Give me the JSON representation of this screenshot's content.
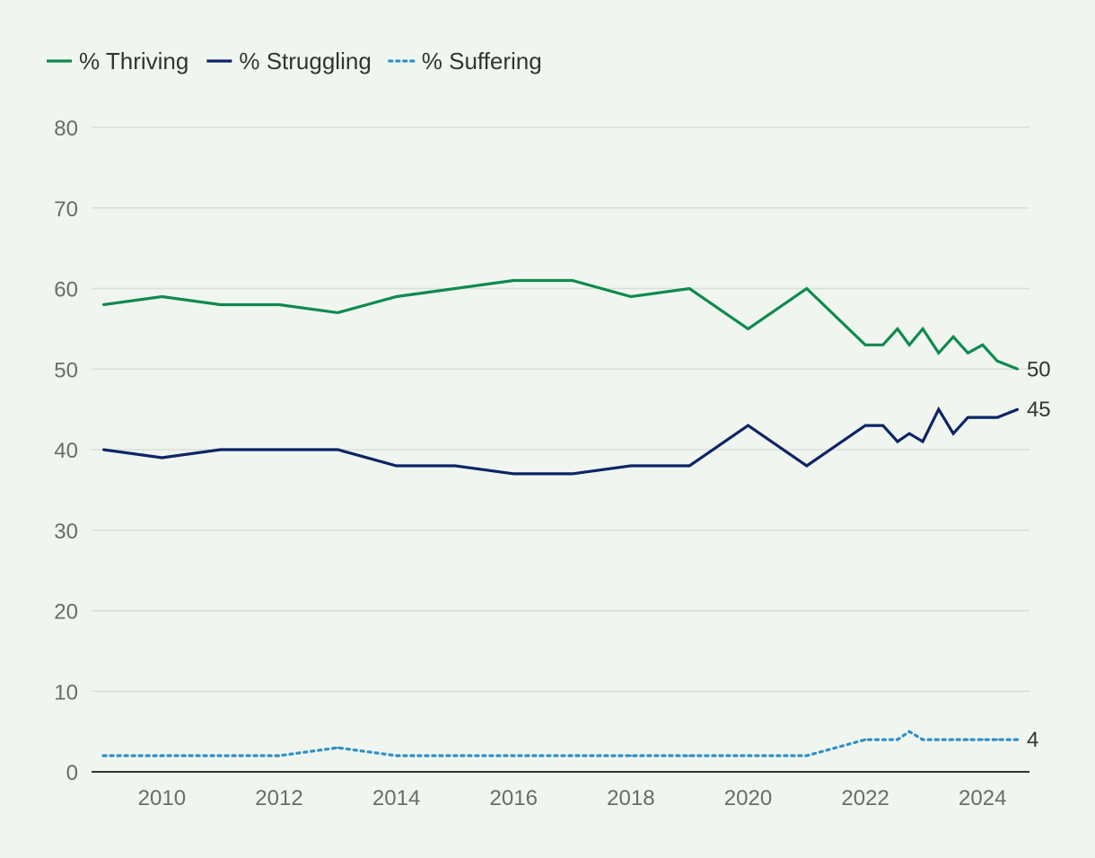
{
  "chart_data": {
    "type": "line",
    "title": "",
    "xlabel": "",
    "ylabel": "",
    "ylim": [
      0,
      80
    ],
    "yticks": [
      0,
      10,
      20,
      30,
      40,
      50,
      60,
      70,
      80
    ],
    "xlim": [
      2008.8,
      2024.8
    ],
    "xticks": [
      2010,
      2012,
      2014,
      2016,
      2018,
      2020,
      2022,
      2024
    ],
    "grid": true,
    "legend_position": "top-left",
    "series": [
      {
        "name": "% Thriving",
        "color": "#0e8a4e",
        "style": "solid",
        "x": [
          2009,
          2010,
          2011,
          2012,
          2013,
          2014,
          2015,
          2016,
          2017,
          2018,
          2019,
          2020,
          2021,
          2022,
          2022.3,
          2022.55,
          2022.75,
          2022.98,
          2023.25,
          2023.5,
          2023.75,
          2024.0,
          2024.25,
          2024.6
        ],
        "y": [
          58,
          59,
          58,
          58,
          57,
          59,
          60,
          61,
          61,
          59,
          60,
          55,
          60,
          53,
          53,
          55,
          53,
          55,
          52,
          54,
          52,
          53,
          51,
          50
        ],
        "end_label": "50"
      },
      {
        "name": "% Struggling",
        "color": "#0d2466",
        "style": "solid",
        "x": [
          2009,
          2010,
          2011,
          2012,
          2013,
          2014,
          2015,
          2016,
          2017,
          2018,
          2019,
          2020,
          2021,
          2022,
          2022.3,
          2022.55,
          2022.75,
          2022.98,
          2023.25,
          2023.5,
          2023.75,
          2024.0,
          2024.25,
          2024.6
        ],
        "y": [
          40,
          39,
          40,
          40,
          40,
          38,
          38,
          37,
          37,
          38,
          38,
          43,
          38,
          43,
          43,
          41,
          42,
          41,
          45,
          42,
          44,
          44,
          44,
          45
        ],
        "end_label": "45"
      },
      {
        "name": "% Suffering",
        "color": "#2f8fc9",
        "style": "dotted",
        "x": [
          2009,
          2010,
          2011,
          2012,
          2013,
          2014,
          2015,
          2016,
          2017,
          2018,
          2019,
          2020,
          2021,
          2022,
          2022.3,
          2022.55,
          2022.75,
          2022.98,
          2023.25,
          2023.5,
          2023.75,
          2024.0,
          2024.25,
          2024.6
        ],
        "y": [
          2,
          2,
          2,
          2,
          3,
          2,
          2,
          2,
          2,
          2,
          2,
          2,
          2,
          4,
          4,
          4,
          5,
          4,
          4,
          4,
          4,
          4,
          4,
          4
        ],
        "end_label": "4"
      }
    ]
  }
}
